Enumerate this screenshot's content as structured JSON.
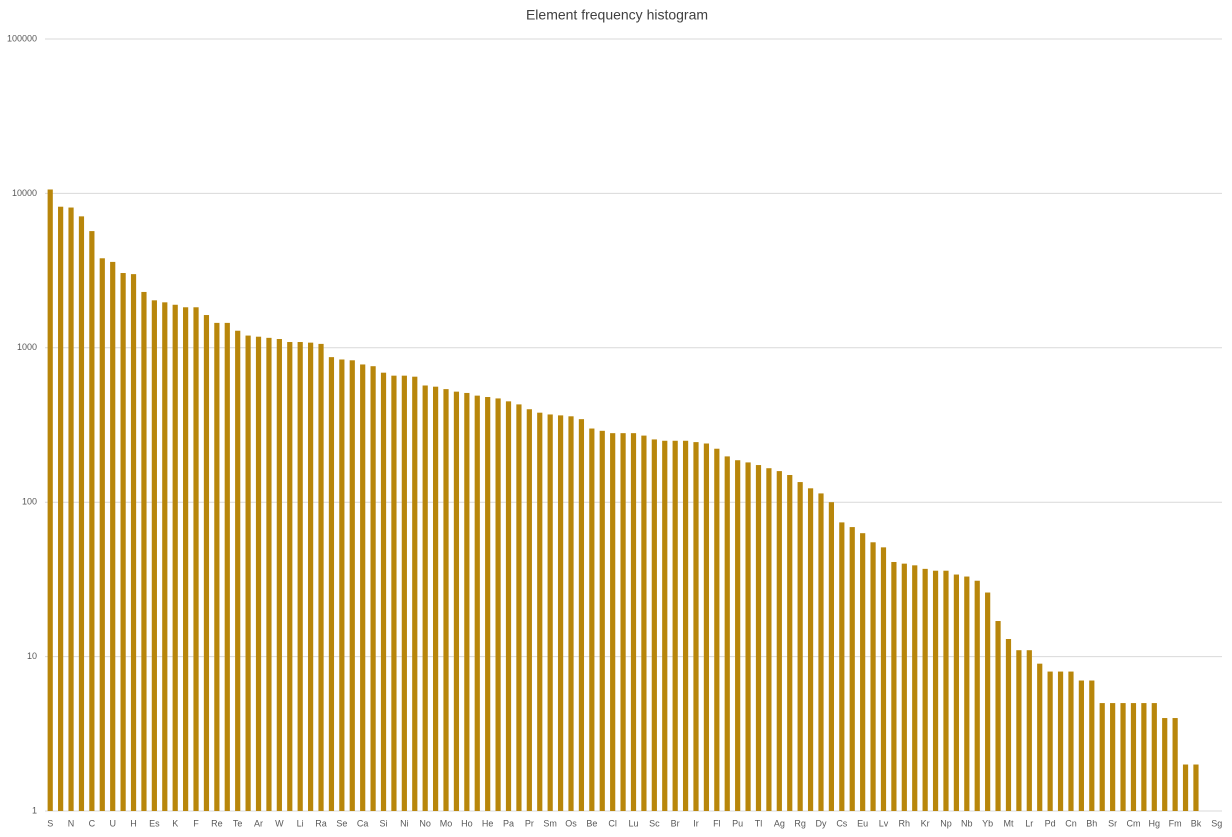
{
  "chart_data": {
    "type": "bar",
    "title": "Element frequency histogram",
    "categories": [
      "S",
      null,
      "N",
      null,
      "C",
      null,
      "U",
      null,
      "H",
      null,
      "Es",
      null,
      "K",
      null,
      "F",
      null,
      "Re",
      null,
      "Te",
      null,
      "Ar",
      null,
      "W",
      null,
      "Li",
      null,
      "Ra",
      null,
      "Se",
      null,
      "Ca",
      null,
      "Si",
      null,
      "Ni",
      null,
      "No",
      null,
      "Mo",
      null,
      "Ho",
      null,
      "He",
      null,
      "Pa",
      null,
      "Pr",
      null,
      "Sm",
      null,
      "Os",
      null,
      "Be",
      null,
      "Cl",
      null,
      "Lu",
      null,
      "Sc",
      null,
      "Br",
      null,
      "Ir",
      null,
      "Fl",
      null,
      "Pu",
      null,
      "Tl",
      null,
      "Ag",
      null,
      "Rg",
      null,
      "Dy",
      null,
      "Cs",
      null,
      "Eu",
      null,
      "Lv",
      null,
      "Rh",
      null,
      "Kr",
      null,
      "Np",
      null,
      "Nb",
      null,
      "Yb",
      null,
      "Mt",
      null,
      "Lr",
      null,
      "Pd",
      null,
      "Cn",
      null,
      "Bh",
      null,
      "Sr",
      null,
      "Cm",
      null,
      "Hg",
      null,
      "Fm",
      null,
      "Bk",
      null,
      "Sg"
    ],
    "values": [
      10600,
      8200,
      8100,
      7100,
      5700,
      3800,
      3600,
      3050,
      3000,
      2300,
      2030,
      1970,
      1900,
      1830,
      1830,
      1630,
      1450,
      1450,
      1290,
      1200,
      1180,
      1160,
      1140,
      1090,
      1090,
      1080,
      1060,
      870,
      840,
      830,
      780,
      760,
      690,
      660,
      660,
      650,
      570,
      560,
      540,
      520,
      510,
      490,
      480,
      470,
      450,
      430,
      400,
      380,
      370,
      365,
      360,
      345,
      300,
      290,
      280,
      280,
      280,
      270,
      255,
      250,
      250,
      250,
      245,
      240,
      222,
      198,
      187,
      181,
      174,
      166,
      159,
      150,
      135,
      123,
      114,
      100,
      74,
      69,
      63,
      55,
      51,
      41,
      40,
      39,
      37,
      36,
      36,
      34,
      33,
      31,
      26,
      17,
      13,
      11,
      11,
      9,
      8,
      8,
      8,
      7,
      7,
      5,
      5,
      5,
      5,
      5,
      5,
      4,
      4,
      2,
      2,
      1,
      1
    ],
    "color": "#b8860b",
    "ylim": [
      1,
      100000
    ],
    "yticks": [
      1,
      10,
      100,
      1000,
      10000,
      100000
    ],
    "log_scale": true,
    "grid": true
  }
}
